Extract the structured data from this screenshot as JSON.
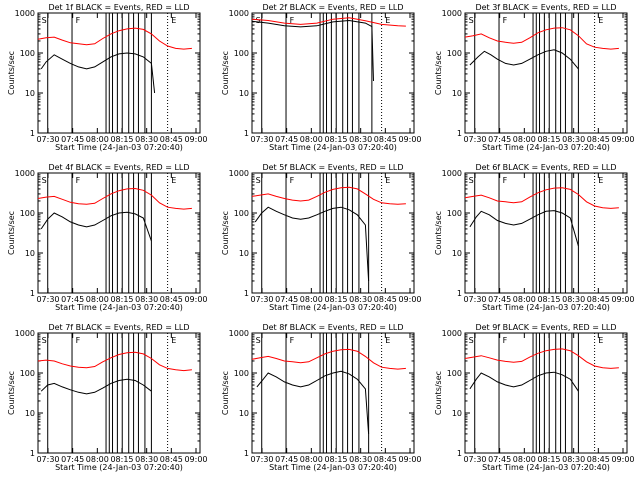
{
  "chart_data": [
    {
      "type": "line",
      "title": "Det 1f BLACK = Events, RED = LLD",
      "xlabel": "Start Time (24-Jan-03 07:20:40)",
      "ylabel": "Counts/sec",
      "yscale": "log",
      "ylim": [
        1,
        1000
      ],
      "xticks": [
        "07:30",
        "07:45",
        "08:00",
        "08:15",
        "08:30",
        "08:45",
        "09:00"
      ],
      "yticks": [
        "1",
        "10",
        "100",
        "1000"
      ],
      "markers": [
        "S",
        "F",
        "E"
      ],
      "series": [
        {
          "color": "#ff0000",
          "x": [
            0,
            5,
            10,
            15,
            20,
            25,
            30,
            35,
            40,
            45,
            50,
            55,
            60,
            65,
            70,
            75,
            80,
            85,
            90,
            95
          ],
          "values": [
            220,
            240,
            250,
            210,
            180,
            170,
            160,
            170,
            230,
            300,
            360,
            400,
            420,
            390,
            300,
            200,
            150,
            130,
            125,
            130
          ]
        },
        {
          "color": "#000000",
          "x": [
            2,
            5,
            10,
            15,
            20,
            25,
            30,
            35,
            40,
            45,
            50,
            55,
            60,
            65,
            70,
            72
          ],
          "values": [
            40,
            60,
            90,
            70,
            55,
            45,
            40,
            45,
            60,
            80,
            95,
            100,
            95,
            80,
            55,
            10
          ]
        }
      ]
    },
    {
      "type": "line",
      "title": "Det 2f BLACK = Events, RED = LLD",
      "xlabel": "Start Time (24-Jan-03 07:20:40)",
      "ylabel": "Counts/sec",
      "yscale": "log",
      "ylim": [
        1,
        1000
      ],
      "xticks": [
        "07:30",
        "07:45",
        "08:00",
        "08:15",
        "08:30",
        "08:45",
        "09:00"
      ],
      "yticks": [
        "1",
        "10",
        "100",
        "1000"
      ],
      "markers": [
        "S",
        "F",
        "E"
      ],
      "series": [
        {
          "color": "#ff0000",
          "x": [
            0,
            10,
            20,
            30,
            40,
            50,
            60,
            70,
            80,
            90,
            95
          ],
          "values": [
            700,
            650,
            560,
            520,
            560,
            700,
            760,
            640,
            520,
            480,
            470
          ]
        },
        {
          "color": "#000000",
          "x": [
            0,
            10,
            20,
            30,
            40,
            50,
            60,
            70,
            74,
            75
          ],
          "values": [
            620,
            560,
            480,
            450,
            480,
            600,
            650,
            560,
            460,
            20
          ]
        }
      ]
    },
    {
      "type": "line",
      "title": "Det 3f BLACK = Events, RED = LLD",
      "xlabel": "Start Time (24-Jan-03 07:20:40)",
      "ylabel": "Counts/sec",
      "yscale": "log",
      "ylim": [
        1,
        1000
      ],
      "xticks": [
        "07:30",
        "07:45",
        "08:00",
        "08:15",
        "08:30",
        "08:45",
        "09:00"
      ],
      "yticks": [
        "1",
        "10",
        "100",
        "1000"
      ],
      "markers": [
        "S",
        "F",
        "E"
      ],
      "series": [
        {
          "color": "#ff0000",
          "x": [
            0,
            5,
            10,
            15,
            20,
            25,
            30,
            35,
            40,
            45,
            50,
            55,
            60,
            65,
            70,
            75,
            80,
            85,
            90,
            95
          ],
          "values": [
            250,
            270,
            300,
            240,
            200,
            185,
            175,
            185,
            240,
            320,
            380,
            420,
            430,
            380,
            270,
            170,
            140,
            130,
            125,
            130
          ]
        },
        {
          "color": "#000000",
          "x": [
            3,
            8,
            12,
            16,
            20,
            25,
            30,
            35,
            40,
            45,
            50,
            55,
            60,
            65,
            70
          ],
          "values": [
            50,
            80,
            110,
            90,
            70,
            55,
            50,
            55,
            70,
            90,
            110,
            120,
            100,
            70,
            40
          ]
        }
      ]
    },
    {
      "type": "line",
      "title": "Det 4f BLACK = Events, RED = LLD",
      "xlabel": "Start Time (24-Jan-03 07:20:40)",
      "ylabel": "Counts/sec",
      "yscale": "log",
      "ylim": [
        1,
        1000
      ],
      "xticks": [
        "07:30",
        "07:45",
        "08:00",
        "08:15",
        "08:30",
        "08:45",
        "09:00"
      ],
      "yticks": [
        "1",
        "10",
        "100",
        "1000"
      ],
      "markers": [
        "S",
        "F",
        "E"
      ],
      "series": [
        {
          "color": "#ff0000",
          "x": [
            0,
            5,
            10,
            15,
            20,
            25,
            30,
            35,
            40,
            45,
            50,
            55,
            60,
            65,
            70,
            75,
            80,
            85,
            90,
            95
          ],
          "values": [
            230,
            250,
            260,
            220,
            185,
            170,
            165,
            175,
            230,
            300,
            360,
            400,
            410,
            370,
            280,
            180,
            140,
            130,
            125,
            130
          ]
        },
        {
          "color": "#000000",
          "x": [
            2,
            6,
            10,
            15,
            20,
            25,
            30,
            35,
            40,
            45,
            50,
            55,
            60,
            65,
            70
          ],
          "values": [
            40,
            70,
            100,
            80,
            60,
            50,
            45,
            50,
            65,
            85,
            100,
            105,
            95,
            75,
            20
          ]
        }
      ]
    },
    {
      "type": "line",
      "title": "Det 5f BLACK = Events, RED = LLD",
      "xlabel": "Start Time (24-Jan-03 07:20:40)",
      "ylabel": "Counts/sec",
      "yscale": "log",
      "ylim": [
        1,
        1000
      ],
      "xticks": [
        "07:30",
        "07:45",
        "08:00",
        "08:15",
        "08:30",
        "08:45",
        "09:00"
      ],
      "yticks": [
        "1",
        "10",
        "100",
        "1000"
      ],
      "markers": [
        "S",
        "F",
        "E"
      ],
      "series": [
        {
          "color": "#ff0000",
          "x": [
            0,
            5,
            10,
            15,
            20,
            25,
            30,
            35,
            40,
            45,
            50,
            55,
            60,
            65,
            70,
            75,
            80,
            85,
            90,
            95
          ],
          "values": [
            260,
            280,
            300,
            260,
            230,
            210,
            200,
            210,
            260,
            330,
            390,
            430,
            440,
            400,
            300,
            220,
            180,
            170,
            165,
            170
          ]
        },
        {
          "color": "#000000",
          "x": [
            2,
            6,
            10,
            15,
            20,
            25,
            30,
            35,
            40,
            45,
            50,
            55,
            60,
            65,
            70,
            72
          ],
          "values": [
            60,
            100,
            140,
            110,
            90,
            75,
            70,
            75,
            90,
            110,
            130,
            140,
            120,
            90,
            50,
            2
          ]
        }
      ]
    },
    {
      "type": "line",
      "title": "Det 6f BLACK = Events, RED = LLD",
      "xlabel": "Start Time (24-Jan-03 07:20:40)",
      "ylabel": "Counts/sec",
      "yscale": "log",
      "ylim": [
        1,
        1000
      ],
      "xticks": [
        "07:30",
        "07:45",
        "08:00",
        "08:15",
        "08:30",
        "08:45",
        "09:00"
      ],
      "yticks": [
        "1",
        "10",
        "100",
        "1000"
      ],
      "markers": [
        "S",
        "F",
        "E"
      ],
      "series": [
        {
          "color": "#ff0000",
          "x": [
            0,
            5,
            10,
            15,
            20,
            25,
            30,
            35,
            40,
            45,
            50,
            55,
            60,
            65,
            70,
            75,
            80,
            85,
            90,
            95
          ],
          "values": [
            240,
            260,
            280,
            240,
            200,
            190,
            180,
            190,
            250,
            320,
            380,
            420,
            430,
            390,
            290,
            190,
            150,
            135,
            130,
            135
          ]
        },
        {
          "color": "#000000",
          "x": [
            3,
            7,
            10,
            15,
            20,
            25,
            30,
            35,
            40,
            45,
            50,
            55,
            60,
            65,
            70
          ],
          "values": [
            45,
            80,
            110,
            90,
            65,
            55,
            50,
            55,
            70,
            90,
            110,
            115,
            100,
            75,
            15
          ]
        }
      ]
    },
    {
      "type": "line",
      "title": "Det 7f BLACK = Events, RED = LLD",
      "xlabel": "Start Time (24-Jan-03 07:20:40)",
      "ylabel": "Counts/sec",
      "yscale": "log",
      "ylim": [
        1,
        1000
      ],
      "xticks": [
        "07:30",
        "07:45",
        "08:00",
        "08:15",
        "08:30",
        "08:45",
        "09:00"
      ],
      "yticks": [
        "1",
        "10",
        "100",
        "1000"
      ],
      "markers": [
        "S",
        "F",
        "E"
      ],
      "series": [
        {
          "color": "#ff0000",
          "x": [
            0,
            5,
            10,
            15,
            20,
            25,
            30,
            35,
            40,
            45,
            50,
            55,
            60,
            65,
            70,
            75,
            80,
            85,
            90,
            95
          ],
          "values": [
            200,
            210,
            200,
            170,
            150,
            140,
            135,
            145,
            190,
            240,
            290,
            320,
            330,
            300,
            230,
            160,
            130,
            120,
            115,
            120
          ]
        },
        {
          "color": "#000000",
          "x": [
            2,
            6,
            10,
            15,
            20,
            25,
            30,
            35,
            40,
            45,
            50,
            55,
            60,
            65,
            70
          ],
          "values": [
            35,
            50,
            55,
            45,
            38,
            33,
            30,
            33,
            42,
            55,
            65,
            70,
            65,
            50,
            35
          ]
        }
      ]
    },
    {
      "type": "line",
      "title": "Det 8f BLACK = Events, RED = LLD",
      "xlabel": "Start Time (24-Jan-03 07:20:40)",
      "ylabel": "Counts/sec",
      "yscale": "log",
      "ylim": [
        1,
        1000
      ],
      "xticks": [
        "07:30",
        "07:45",
        "08:00",
        "08:15",
        "08:30",
        "08:45",
        "09:00"
      ],
      "yticks": [
        "1",
        "10",
        "100",
        "1000"
      ],
      "markers": [
        "S",
        "F",
        "E"
      ],
      "series": [
        {
          "color": "#ff0000",
          "x": [
            0,
            5,
            10,
            15,
            20,
            25,
            30,
            35,
            40,
            45,
            50,
            55,
            60,
            65,
            70,
            75,
            80,
            85,
            90,
            95
          ],
          "values": [
            220,
            240,
            260,
            230,
            200,
            190,
            180,
            190,
            240,
            300,
            350,
            380,
            390,
            350,
            260,
            180,
            140,
            130,
            125,
            130
          ]
        },
        {
          "color": "#000000",
          "x": [
            3,
            7,
            10,
            15,
            20,
            25,
            30,
            35,
            40,
            45,
            50,
            55,
            60,
            65,
            70,
            72
          ],
          "values": [
            45,
            70,
            100,
            80,
            60,
            50,
            45,
            50,
            65,
            85,
            100,
            110,
            95,
            70,
            40,
            3
          ]
        }
      ]
    },
    {
      "type": "line",
      "title": "Det 9f BLACK = Events, RED = LLD",
      "xlabel": "Start Time (24-Jan-03 07:20:40)",
      "ylabel": "Counts/sec",
      "yscale": "log",
      "ylim": [
        1,
        1000
      ],
      "xticks": [
        "07:30",
        "07:45",
        "08:00",
        "08:15",
        "08:30",
        "08:45",
        "09:00"
      ],
      "yticks": [
        "1",
        "10",
        "100",
        "1000"
      ],
      "markers": [
        "S",
        "F",
        "E"
      ],
      "series": [
        {
          "color": "#ff0000",
          "x": [
            0,
            5,
            10,
            15,
            20,
            25,
            30,
            35,
            40,
            45,
            50,
            55,
            60,
            65,
            70,
            75,
            80,
            85,
            90,
            95
          ],
          "values": [
            230,
            250,
            270,
            240,
            210,
            195,
            185,
            195,
            250,
            310,
            360,
            390,
            400,
            360,
            270,
            190,
            150,
            135,
            130,
            135
          ]
        },
        {
          "color": "#000000",
          "x": [
            3,
            7,
            10,
            15,
            20,
            25,
            30,
            35,
            40,
            45,
            50,
            55,
            60,
            65,
            70
          ],
          "values": [
            40,
            70,
            100,
            80,
            60,
            50,
            45,
            50,
            65,
            85,
            100,
            105,
            90,
            70,
            35
          ]
        }
      ]
    }
  ]
}
